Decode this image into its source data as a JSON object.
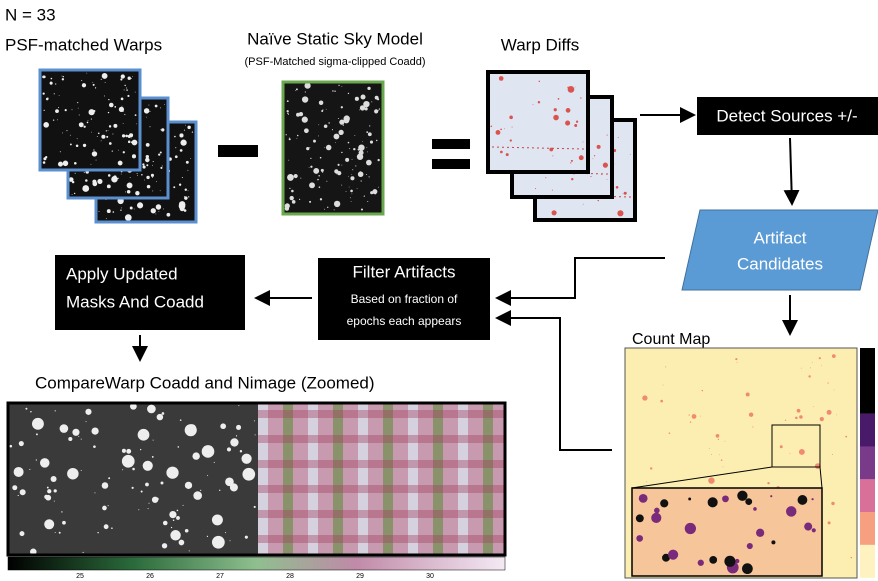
{
  "header": {
    "count": "N = 33",
    "warps_label": "PSF-matched Warps"
  },
  "model": {
    "title": "Naïve Static Sky Model",
    "subtitle": "(PSF-Matched sigma-clipped Coadd)"
  },
  "diffs": {
    "title": "Warp Diffs"
  },
  "nodes": [
    {
      "label": "Detect Sources +/-"
    },
    {
      "lines": [
        "Artifact",
        "Candidates"
      ]
    },
    {
      "title": "Filter Artifacts",
      "lines": [
        "Based on fraction of",
        "epochs each appears"
      ]
    },
    {
      "lines": [
        "Apply Updated",
        "Masks And Coadd"
      ]
    }
  ],
  "count_map": {
    "title": "Count Map"
  },
  "coadd": {
    "title": "CompareWarp Coadd and Nimage (Zoomed)",
    "colorbar_ticks": [
      "25",
      "26",
      "27",
      "28",
      "29",
      "30"
    ]
  }
}
